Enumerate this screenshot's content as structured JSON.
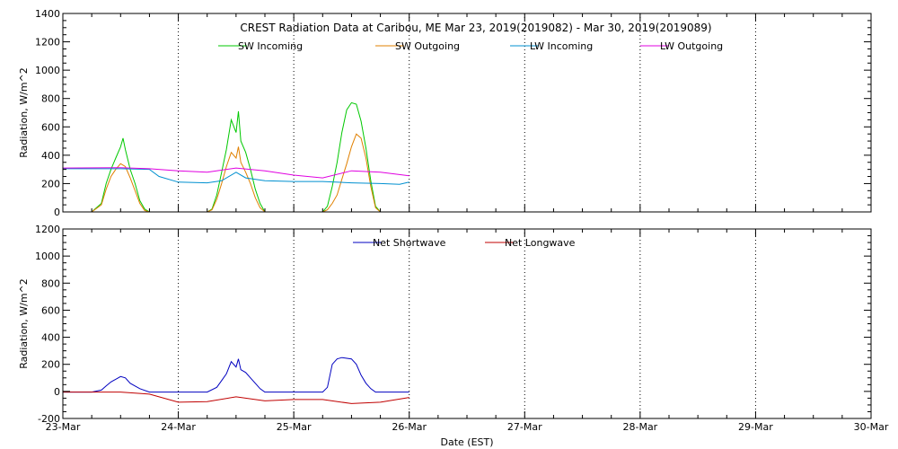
{
  "chart_data": [
    {
      "type": "line",
      "title": "CREST Radiation Data at Caribou, ME   Mar 23, 2019(2019082) - Mar 30, 2019(2019089)",
      "xlabel": "",
      "ylabel": "Radiation, W/m^2",
      "x_ticks": [
        "23-Mar",
        "24-Mar",
        "25-Mar",
        "26-Mar",
        "27-Mar",
        "28-Mar",
        "29-Mar",
        "30-Mar"
      ],
      "xlim": [
        "2019-03-23",
        "2019-03-30"
      ],
      "ylim": [
        0,
        1400
      ],
      "y_ticks": [
        0,
        200,
        400,
        600,
        800,
        1000,
        1200,
        1400
      ],
      "grid": true,
      "legend": "top",
      "series": [
        {
          "name": "SW Incoming",
          "color": "#00c800",
          "points": [
            [
              "2019-03-23 00:00",
              0
            ],
            [
              "2019-03-23 06:00",
              0
            ],
            [
              "2019-03-23 08:00",
              60
            ],
            [
              "2019-03-23 09:00",
              200
            ],
            [
              "2019-03-23 10:00",
              300
            ],
            [
              "2019-03-23 11:00",
              380
            ],
            [
              "2019-03-23 12:00",
              460
            ],
            [
              "2019-03-23 12:30",
              520
            ],
            [
              "2019-03-23 13:00",
              440
            ],
            [
              "2019-03-23 14:00",
              300
            ],
            [
              "2019-03-23 15:00",
              200
            ],
            [
              "2019-03-23 16:00",
              80
            ],
            [
              "2019-03-23 17:00",
              20
            ],
            [
              "2019-03-23 18:00",
              0
            ],
            [
              "2019-03-24 06:00",
              0
            ],
            [
              "2019-03-24 07:00",
              20
            ],
            [
              "2019-03-24 08:00",
              120
            ],
            [
              "2019-03-24 09:00",
              280
            ],
            [
              "2019-03-24 10:00",
              440
            ],
            [
              "2019-03-24 11:00",
              650
            ],
            [
              "2019-03-24 12:00",
              560
            ],
            [
              "2019-03-24 12:30",
              710
            ],
            [
              "2019-03-24 13:00",
              500
            ],
            [
              "2019-03-24 14:00",
              420
            ],
            [
              "2019-03-24 15:00",
              300
            ],
            [
              "2019-03-24 16:00",
              160
            ],
            [
              "2019-03-24 17:00",
              60
            ],
            [
              "2019-03-24 18:00",
              0
            ],
            [
              "2019-03-25 06:00",
              0
            ],
            [
              "2019-03-25 07:00",
              40
            ],
            [
              "2019-03-25 08:00",
              180
            ],
            [
              "2019-03-25 09:00",
              350
            ],
            [
              "2019-03-25 10:00",
              560
            ],
            [
              "2019-03-25 11:00",
              720
            ],
            [
              "2019-03-25 12:00",
              770
            ],
            [
              "2019-03-25 13:00",
              760
            ],
            [
              "2019-03-25 14:00",
              640
            ],
            [
              "2019-03-25 15:00",
              450
            ],
            [
              "2019-03-25 16:00",
              220
            ],
            [
              "2019-03-25 17:00",
              40
            ],
            [
              "2019-03-25 18:00",
              0
            ],
            [
              "2019-03-26 00:00",
              0
            ]
          ]
        },
        {
          "name": "SW Outgoing",
          "color": "#e08000",
          "points": [
            [
              "2019-03-23 00:00",
              0
            ],
            [
              "2019-03-23 06:00",
              0
            ],
            [
              "2019-03-23 08:00",
              50
            ],
            [
              "2019-03-23 09:00",
              160
            ],
            [
              "2019-03-23 10:00",
              250
            ],
            [
              "2019-03-23 11:00",
              300
            ],
            [
              "2019-03-23 12:00",
              340
            ],
            [
              "2019-03-23 13:00",
              320
            ],
            [
              "2019-03-23 14:00",
              240
            ],
            [
              "2019-03-23 15:00",
              150
            ],
            [
              "2019-03-23 16:00",
              60
            ],
            [
              "2019-03-23 17:00",
              10
            ],
            [
              "2019-03-23 18:00",
              0
            ],
            [
              "2019-03-24 06:00",
              0
            ],
            [
              "2019-03-24 07:00",
              15
            ],
            [
              "2019-03-24 08:00",
              90
            ],
            [
              "2019-03-24 09:00",
              200
            ],
            [
              "2019-03-24 10:00",
              320
            ],
            [
              "2019-03-24 11:00",
              420
            ],
            [
              "2019-03-24 12:00",
              380
            ],
            [
              "2019-03-24 12:30",
              460
            ],
            [
              "2019-03-24 13:00",
              350
            ],
            [
              "2019-03-24 14:00",
              280
            ],
            [
              "2019-03-24 15:00",
              200
            ],
            [
              "2019-03-24 16:00",
              100
            ],
            [
              "2019-03-24 17:00",
              30
            ],
            [
              "2019-03-24 18:00",
              0
            ],
            [
              "2019-03-25 06:00",
              0
            ],
            [
              "2019-03-25 07:00",
              15
            ],
            [
              "2019-03-25 08:00",
              60
            ],
            [
              "2019-03-25 09:00",
              120
            ],
            [
              "2019-03-25 10:00",
              230
            ],
            [
              "2019-03-25 11:00",
              340
            ],
            [
              "2019-03-25 12:00",
              460
            ],
            [
              "2019-03-25 13:00",
              550
            ],
            [
              "2019-03-25 14:00",
              520
            ],
            [
              "2019-03-25 15:00",
              380
            ],
            [
              "2019-03-25 16:00",
              180
            ],
            [
              "2019-03-25 17:00",
              30
            ],
            [
              "2019-03-25 18:00",
              0
            ],
            [
              "2019-03-26 00:00",
              0
            ]
          ]
        },
        {
          "name": "LW Incoming",
          "color": "#0090d0",
          "points": [
            [
              "2019-03-23 00:00",
              305
            ],
            [
              "2019-03-23 12:00",
              305
            ],
            [
              "2019-03-23 18:00",
              300
            ],
            [
              "2019-03-23 20:00",
              250
            ],
            [
              "2019-03-24 00:00",
              210
            ],
            [
              "2019-03-24 06:00",
              205
            ],
            [
              "2019-03-24 09:00",
              220
            ],
            [
              "2019-03-24 12:00",
              280
            ],
            [
              "2019-03-24 14:00",
              240
            ],
            [
              "2019-03-24 18:00",
              220
            ],
            [
              "2019-03-25 00:00",
              215
            ],
            [
              "2019-03-25 06:00",
              215
            ],
            [
              "2019-03-25 12:00",
              205
            ],
            [
              "2019-03-25 18:00",
              200
            ],
            [
              "2019-03-25 22:00",
              195
            ],
            [
              "2019-03-26 00:00",
              210
            ]
          ]
        },
        {
          "name": "LW Outgoing",
          "color": "#e000e0",
          "points": [
            [
              "2019-03-23 00:00",
              310
            ],
            [
              "2019-03-23 12:00",
              312
            ],
            [
              "2019-03-23 18:00",
              305
            ],
            [
              "2019-03-24 00:00",
              290
            ],
            [
              "2019-03-24 06:00",
              280
            ],
            [
              "2019-03-24 12:00",
              310
            ],
            [
              "2019-03-24 18:00",
              290
            ],
            [
              "2019-03-25 00:00",
              260
            ],
            [
              "2019-03-25 06:00",
              240
            ],
            [
              "2019-03-25 12:00",
              290
            ],
            [
              "2019-03-25 18:00",
              280
            ],
            [
              "2019-03-26 00:00",
              255
            ]
          ]
        }
      ]
    },
    {
      "type": "line",
      "title": "",
      "xlabel": "Date (EST)",
      "ylabel": "Radiation, W/m^2",
      "x_ticks": [
        "23-Mar",
        "24-Mar",
        "25-Mar",
        "26-Mar",
        "27-Mar",
        "28-Mar",
        "29-Mar",
        "30-Mar"
      ],
      "xlim": [
        "2019-03-23",
        "2019-03-30"
      ],
      "ylim": [
        -200,
        1200
      ],
      "y_ticks": [
        -200,
        0,
        200,
        400,
        600,
        800,
        1000,
        1200
      ],
      "grid": true,
      "legend": "top",
      "series": [
        {
          "name": "Net Shortwave",
          "color": "#0000c0",
          "points": [
            [
              "2019-03-23 00:00",
              -5
            ],
            [
              "2019-03-23 06:00",
              -5
            ],
            [
              "2019-03-23 08:00",
              10
            ],
            [
              "2019-03-23 09:00",
              40
            ],
            [
              "2019-03-23 10:00",
              70
            ],
            [
              "2019-03-23 12:00",
              110
            ],
            [
              "2019-03-23 13:00",
              100
            ],
            [
              "2019-03-23 14:00",
              60
            ],
            [
              "2019-03-23 16:00",
              20
            ],
            [
              "2019-03-23 18:00",
              -5
            ],
            [
              "2019-03-24 06:00",
              -5
            ],
            [
              "2019-03-24 08:00",
              30
            ],
            [
              "2019-03-24 09:00",
              80
            ],
            [
              "2019-03-24 10:00",
              130
            ],
            [
              "2019-03-24 11:00",
              220
            ],
            [
              "2019-03-24 12:00",
              180
            ],
            [
              "2019-03-24 12:30",
              240
            ],
            [
              "2019-03-24 13:00",
              160
            ],
            [
              "2019-03-24 14:00",
              140
            ],
            [
              "2019-03-24 15:00",
              100
            ],
            [
              "2019-03-24 16:00",
              60
            ],
            [
              "2019-03-24 17:00",
              20
            ],
            [
              "2019-03-24 18:00",
              -5
            ],
            [
              "2019-03-25 06:00",
              -5
            ],
            [
              "2019-03-25 07:00",
              30
            ],
            [
              "2019-03-25 08:00",
              200
            ],
            [
              "2019-03-25 09:00",
              240
            ],
            [
              "2019-03-25 10:00",
              250
            ],
            [
              "2019-03-25 12:00",
              240
            ],
            [
              "2019-03-25 13:00",
              200
            ],
            [
              "2019-03-25 14:00",
              120
            ],
            [
              "2019-03-25 15:00",
              60
            ],
            [
              "2019-03-25 16:00",
              20
            ],
            [
              "2019-03-25 17:00",
              -5
            ],
            [
              "2019-03-26 00:00",
              -5
            ]
          ]
        },
        {
          "name": "Net Longwave",
          "color": "#c00000",
          "points": [
            [
              "2019-03-23 00:00",
              -5
            ],
            [
              "2019-03-23 12:00",
              -5
            ],
            [
              "2019-03-23 18:00",
              -20
            ],
            [
              "2019-03-24 00:00",
              -80
            ],
            [
              "2019-03-24 06:00",
              -75
            ],
            [
              "2019-03-24 12:00",
              -40
            ],
            [
              "2019-03-24 18:00",
              -70
            ],
            [
              "2019-03-25 00:00",
              -60
            ],
            [
              "2019-03-25 06:00",
              -60
            ],
            [
              "2019-03-25 12:00",
              -90
            ],
            [
              "2019-03-25 18:00",
              -80
            ],
            [
              "2019-03-26 00:00",
              -45
            ]
          ]
        }
      ]
    }
  ]
}
